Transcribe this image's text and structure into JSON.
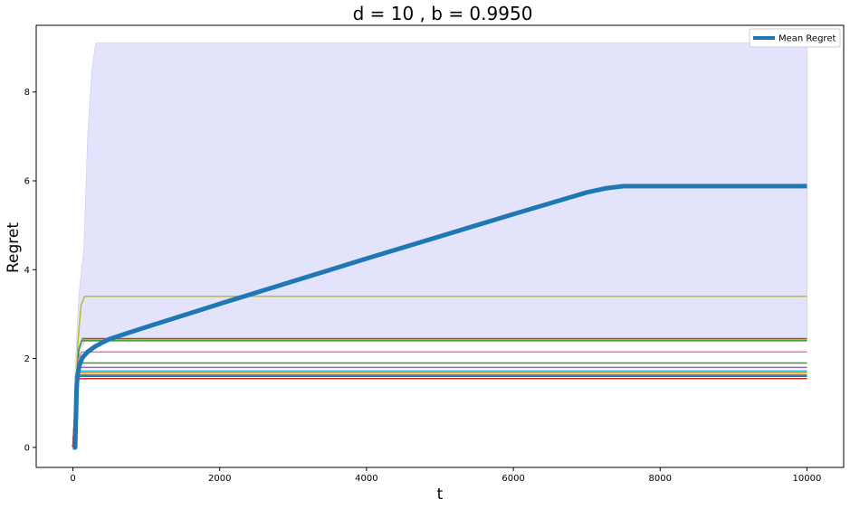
{
  "chart_data": {
    "type": "line",
    "title": "d = 10 , b = 0.9950",
    "xlabel": "t",
    "ylabel": "Regret",
    "xlim": [
      -500,
      10500
    ],
    "ylim": [
      -0.45,
      9.5
    ],
    "xticks": [
      0,
      2000,
      4000,
      6000,
      8000,
      10000
    ],
    "yticks": [
      0,
      2,
      4,
      6,
      8
    ],
    "legend": {
      "position": "top-right",
      "entries": [
        "Mean Regret"
      ]
    },
    "grid": false,
    "band": {
      "color": "#e3e3fc",
      "upper": [
        [
          0,
          0
        ],
        [
          30,
          1.7
        ],
        [
          80,
          3.4
        ],
        [
          150,
          4.5
        ],
        [
          200,
          7.0
        ],
        [
          260,
          8.5
        ],
        [
          310,
          9.1
        ],
        [
          10000,
          9.1
        ]
      ],
      "lower": [
        [
          0,
          0
        ],
        [
          40,
          0.9
        ],
        [
          70,
          1.9
        ],
        [
          100,
          2.2
        ],
        [
          150,
          2.35
        ],
        [
          200,
          2.42
        ],
        [
          10000,
          2.42
        ]
      ]
    },
    "mean": {
      "name": "Mean Regret",
      "color": "#1f77b4",
      "points": [
        [
          0,
          0
        ],
        [
          30,
          0
        ],
        [
          40,
          0.6
        ],
        [
          50,
          1.3
        ],
        [
          60,
          1.6
        ],
        [
          90,
          1.85
        ],
        [
          130,
          2.02
        ],
        [
          200,
          2.15
        ],
        [
          300,
          2.27
        ],
        [
          400,
          2.36
        ],
        [
          500,
          2.44
        ],
        [
          700,
          2.55
        ],
        [
          1000,
          2.71
        ],
        [
          2000,
          3.23
        ],
        [
          4000,
          4.25
        ],
        [
          6000,
          5.25
        ],
        [
          7000,
          5.74
        ],
        [
          7250,
          5.83
        ],
        [
          7500,
          5.88
        ],
        [
          10000,
          5.88
        ]
      ]
    },
    "runs": [
      {
        "color": "#bcbd22",
        "level": 3.4,
        "rise": [
          [
            0,
            0
          ],
          [
            40,
            1.3
          ],
          [
            70,
            2.4
          ],
          [
            110,
            3.2
          ],
          [
            160,
            3.4
          ]
        ]
      },
      {
        "color": "#8c564b",
        "level": 2.45,
        "rise": [
          [
            0,
            0
          ],
          [
            40,
            1.2
          ],
          [
            80,
            2.2
          ],
          [
            130,
            2.45
          ]
        ]
      },
      {
        "color": "#bcbd22",
        "level": 2.42,
        "rise": [
          [
            0,
            0
          ],
          [
            40,
            1.2
          ],
          [
            80,
            2.2
          ],
          [
            120,
            2.42
          ]
        ]
      },
      {
        "color": "#2ca02c",
        "level": 2.4,
        "rise": [
          [
            0,
            0
          ],
          [
            40,
            1.2
          ],
          [
            80,
            2.2
          ],
          [
            120,
            2.4
          ]
        ]
      },
      {
        "color": "#e377c2",
        "level": 2.15,
        "rise": [
          [
            0,
            0
          ],
          [
            40,
            1.2
          ],
          [
            80,
            2.0
          ],
          [
            120,
            2.15
          ]
        ]
      },
      {
        "color": "#2ca02c",
        "level": 1.9,
        "rise": [
          [
            0,
            0
          ],
          [
            40,
            1.2
          ],
          [
            80,
            1.85
          ],
          [
            110,
            1.9
          ]
        ]
      },
      {
        "color": "#9467bd",
        "level": 1.8,
        "rise": [
          [
            0,
            0
          ],
          [
            40,
            1.2
          ],
          [
            80,
            1.78
          ],
          [
            110,
            1.8
          ]
        ]
      },
      {
        "color": "#17becf",
        "level": 1.72,
        "rise": [
          [
            0,
            0
          ],
          [
            40,
            1.2
          ],
          [
            80,
            1.7
          ],
          [
            110,
            1.72
          ]
        ]
      },
      {
        "color": "#ff7f0e",
        "level": 1.68,
        "rise": [
          [
            0,
            0
          ],
          [
            40,
            1.2
          ],
          [
            80,
            1.66
          ],
          [
            110,
            1.68
          ]
        ]
      },
      {
        "color": "#7f7f7f",
        "level": 1.63,
        "rise": [
          [
            0,
            0
          ],
          [
            40,
            1.2
          ],
          [
            80,
            1.61
          ],
          [
            110,
            1.63
          ]
        ]
      },
      {
        "color": "#1f77b4",
        "level": 1.6,
        "rise": [
          [
            0,
            0
          ],
          [
            40,
            1.2
          ],
          [
            80,
            1.58
          ],
          [
            110,
            1.6
          ]
        ]
      },
      {
        "color": "#d62728",
        "level": 1.55,
        "rise": [
          [
            0,
            0
          ],
          [
            40,
            1.2
          ],
          [
            80,
            1.53
          ],
          [
            110,
            1.55
          ]
        ]
      }
    ]
  }
}
